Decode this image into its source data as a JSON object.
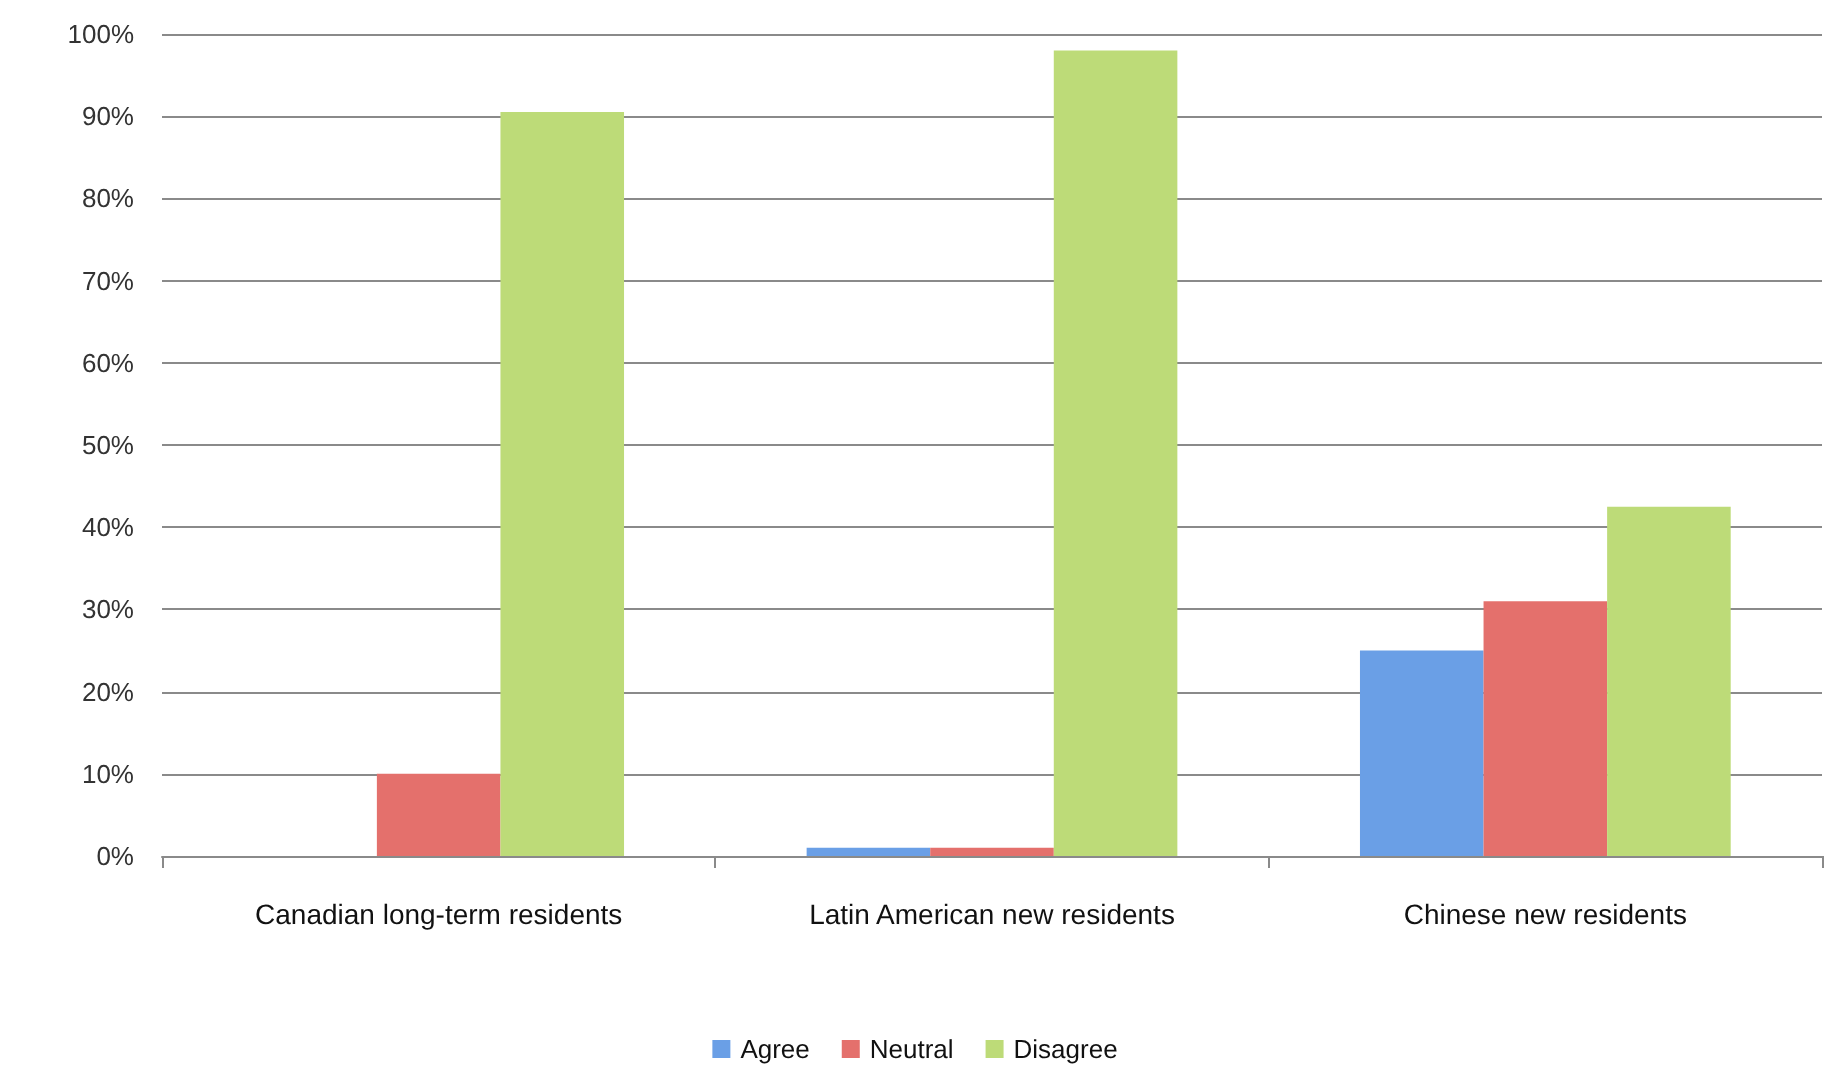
{
  "chart_data": {
    "type": "bar",
    "categories": [
      "Canadian long-term residents",
      "Latin American new residents",
      "Chinese new residents"
    ],
    "series": [
      {
        "name": "Agree",
        "color": "#6a9fe6",
        "values": [
          0,
          1,
          25
        ]
      },
      {
        "name": "Neutral",
        "color": "#e4706c",
        "values": [
          10,
          1,
          31
        ]
      },
      {
        "name": "Disagree",
        "color": "#bddb78",
        "values": [
          90.5,
          98,
          42.5
        ]
      }
    ],
    "ylim": [
      0,
      100
    ],
    "yticks": [
      {
        "value": 0,
        "label": "0%"
      },
      {
        "value": 10,
        "label": "10%"
      },
      {
        "value": 20,
        "label": "20%"
      },
      {
        "value": 30,
        "label": "30%"
      },
      {
        "value": 40,
        "label": "40%"
      },
      {
        "value": 50,
        "label": "50%"
      },
      {
        "value": 60,
        "label": "60%"
      },
      {
        "value": 70,
        "label": "70%"
      },
      {
        "value": 80,
        "label": "80%"
      },
      {
        "value": 90,
        "label": "90%"
      },
      {
        "value": 100,
        "label": "100%"
      }
    ],
    "grid": "y",
    "legend": "bottom"
  }
}
